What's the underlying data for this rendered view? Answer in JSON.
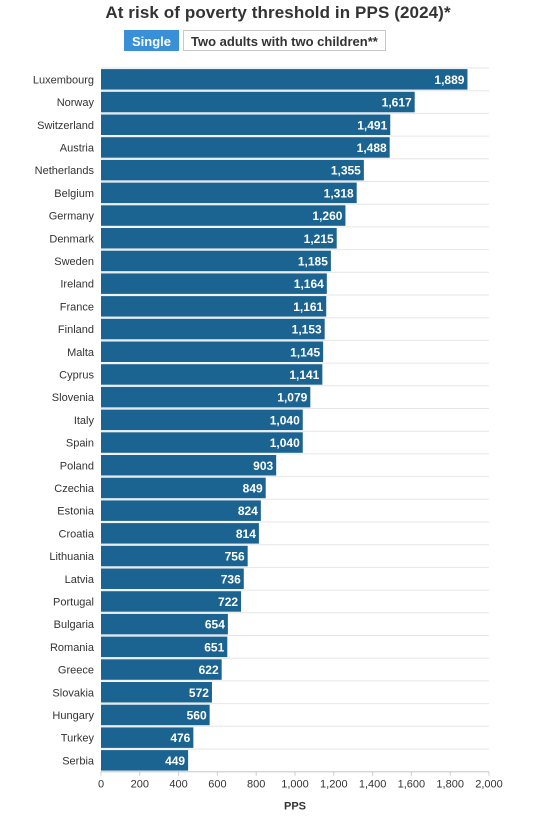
{
  "title": "At risk of poverty threshold in PPS (2024)*",
  "toggle": {
    "options": [
      "Single",
      "Two adults with two children**"
    ],
    "selected": "Single"
  },
  "colors": {
    "bar": "#1b6391",
    "active_toggle": "#3a8fd9",
    "grid": "#e6e6e6"
  },
  "chart_data": {
    "type": "bar",
    "orientation": "horizontal",
    "categories": [
      "Luxembourg",
      "Norway",
      "Switzerland",
      "Austria",
      "Netherlands",
      "Belgium",
      "Germany",
      "Denmark",
      "Sweden",
      "Ireland",
      "France",
      "Finland",
      "Malta",
      "Cyprus",
      "Slovenia",
      "Italy",
      "Spain",
      "Poland",
      "Czechia",
      "Estonia",
      "Croatia",
      "Lithuania",
      "Latvia",
      "Portugal",
      "Bulgaria",
      "Romania",
      "Greece",
      "Slovakia",
      "Hungary",
      "Turkey",
      "Serbia"
    ],
    "values": [
      1889,
      1617,
      1491,
      1488,
      1355,
      1318,
      1260,
      1215,
      1185,
      1164,
      1161,
      1153,
      1145,
      1141,
      1079,
      1040,
      1040,
      903,
      849,
      824,
      814,
      756,
      736,
      722,
      654,
      651,
      622,
      572,
      560,
      476,
      449
    ],
    "value_labels": [
      "1,889",
      "1,617",
      "1,491",
      "1,488",
      "1,355",
      "1,318",
      "1,260",
      "1,215",
      "1,185",
      "1,164",
      "1,161",
      "1,153",
      "1,145",
      "1,141",
      "1,079",
      "1,040",
      "1,040",
      "903",
      "849",
      "824",
      "814",
      "756",
      "736",
      "722",
      "654",
      "651",
      "622",
      "572",
      "560",
      "476",
      "449"
    ],
    "xlabel": "PPS",
    "xlim": [
      0,
      2000
    ],
    "xticks": [
      0,
      200,
      400,
      600,
      800,
      1000,
      1200,
      1400,
      1600,
      1800,
      2000
    ],
    "xtick_labels": [
      "0",
      "200",
      "400",
      "600",
      "800",
      "1,000",
      "1,200",
      "1,400",
      "1,600",
      "1,800",
      "2,000"
    ],
    "grid": true
  }
}
